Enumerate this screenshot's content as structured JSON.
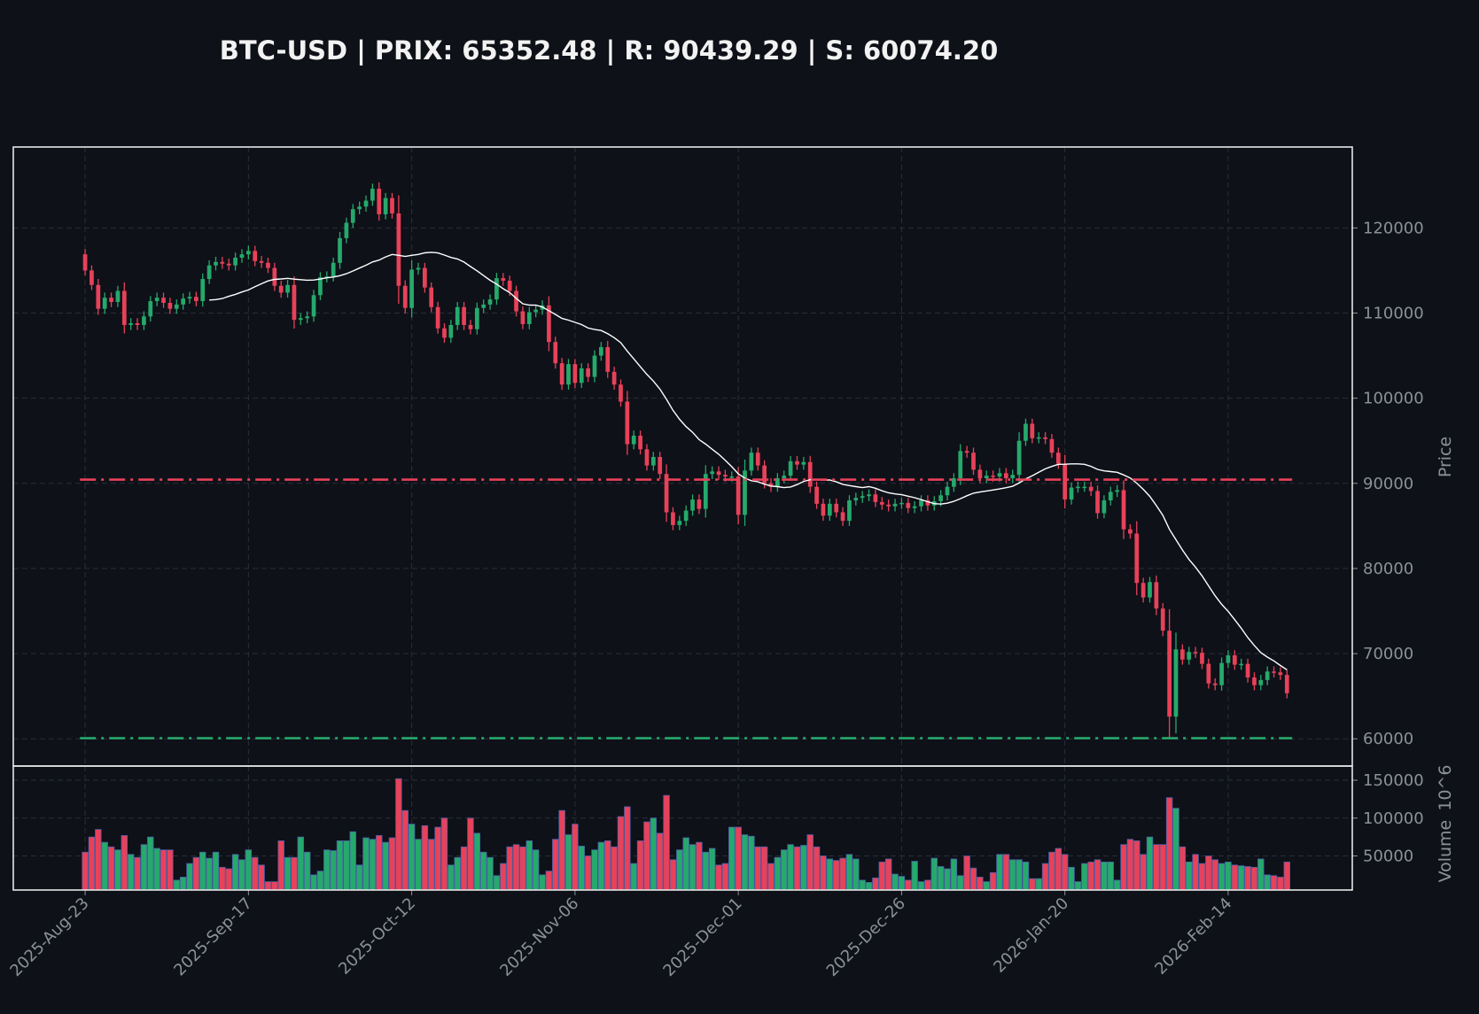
{
  "chart_data": {
    "type": "candlestick",
    "title": "BTC-USD | PRIX: 65352.48 | R: 90439.29 | S: 60074.20",
    "ylabel": "Price",
    "volume_label": "Volume",
    "volume_offset_label": "10^6",
    "start_date": "2025-08-23",
    "frequency": "daily",
    "xlim": [
      "2025-08-12",
      "2026-03-05"
    ],
    "price_ylim": [
      56800,
      129500
    ],
    "volume_ylim": [
      5000,
      168750
    ],
    "grid": true,
    "x_tick_labels": [
      "2025-Aug-23",
      "2025-Sep-17",
      "2025-Oct-12",
      "2025-Nov-06",
      "2025-Dec-01",
      "2025-Dec-26",
      "2026-Jan-20",
      "2026-Feb-14"
    ],
    "price_ticks": [
      "60000",
      "70000",
      "80000",
      "90000",
      "100000",
      "110000",
      "120000"
    ],
    "volume_ticks": [
      "50000",
      "100000",
      "150000"
    ],
    "resistance": {
      "value": 90439.29,
      "color": "#e8415a",
      "style": "dash-dot"
    },
    "support": {
      "value": 60074.2,
      "color": "#26a96c",
      "style": "dash-dot"
    },
    "overlay": {
      "type": "SMA",
      "period": 20,
      "color": "#ffffff"
    },
    "colors": {
      "up": "#26a96c",
      "down": "#e8415a",
      "background": "#0e1118",
      "text": "#8b919a"
    },
    "close": [
      115000,
      113300,
      110500,
      111800,
      111300,
      112600,
      108600,
      108800,
      108600,
      109600,
      111400,
      111800,
      111200,
      110500,
      111000,
      111700,
      111900,
      111400,
      114000,
      115600,
      116000,
      115800,
      115600,
      116500,
      116900,
      117300,
      116100,
      115900,
      115300,
      113200,
      112400,
      113300,
      109200,
      109400,
      109600,
      112100,
      114200,
      114300,
      115900,
      118800,
      120600,
      122200,
      122500,
      123200,
      124600,
      121600,
      123500,
      121700,
      113200,
      110600,
      115100,
      115300,
      113000,
      110700,
      108200,
      107100,
      108600,
      110700,
      108600,
      108100,
      110600,
      111000,
      111600,
      114100,
      113800,
      112600,
      110200,
      108700,
      110100,
      110400,
      110900,
      106600,
      104100,
      101600,
      104000,
      101800,
      103500,
      102500,
      105000,
      106000,
      103100,
      101600,
      99600,
      94600,
      95600,
      94000,
      92100,
      93100,
      91100,
      86600,
      85100,
      85600,
      86800,
      88100,
      87000,
      91100,
      91400,
      91000,
      90800,
      90800,
      86300,
      91500,
      93600,
      92100,
      90000,
      89600,
      90600,
      90900,
      92600,
      92200,
      92500,
      89600,
      87600,
      86200,
      87600,
      86600,
      85600,
      88000,
      88300,
      88500,
      88700,
      87800,
      87500,
      87300,
      87600,
      87700,
      87100,
      87300,
      88000,
      87400,
      87900,
      88600,
      89600,
      90600,
      93800,
      93600,
      91600,
      90600,
      90900,
      90800,
      91200,
      90600,
      91000,
      95000,
      97000,
      95300,
      95400,
      95200,
      93600,
      92300,
      88100,
      89500,
      89600,
      89600,
      89100,
      86500,
      88000,
      89000,
      89200,
      84600,
      84100,
      78300,
      76600,
      78400,
      75300,
      72700,
      62600,
      70500,
      69300,
      70200,
      70100,
      68800,
      66500,
      66300,
      68900,
      69800,
      68700,
      68800,
      67200,
      66300,
      66900,
      67900,
      67800,
      67500,
      65352.48
    ],
    "open_first": 116900,
    "volume": [
      55000,
      75000,
      85000,
      68000,
      62000,
      58000,
      77000,
      52000,
      48000,
      65000,
      75000,
      60000,
      58000,
      58000,
      18000,
      22000,
      40000,
      48000,
      55000,
      47000,
      55000,
      35000,
      33000,
      52000,
      45000,
      58000,
      48000,
      38000,
      16000,
      16000,
      70000,
      48000,
      48000,
      75000,
      55000,
      25000,
      30000,
      58000,
      57000,
      70000,
      70000,
      82000,
      38000,
      74000,
      72000,
      77000,
      68000,
      74000,
      152000,
      110000,
      92000,
      72000,
      90000,
      72000,
      88000,
      100000,
      38000,
      48000,
      62000,
      100000,
      80000,
      55000,
      48000,
      24000,
      40000,
      62000,
      65000,
      62000,
      70000,
      58000,
      25000,
      30000,
      72000,
      110000,
      78000,
      92000,
      63000,
      50000,
      58000,
      68000,
      70000,
      62000,
      102000,
      115000,
      40000,
      70000,
      95000,
      100000,
      80000,
      130000,
      45000,
      58000,
      74000,
      65000,
      68000,
      55000,
      60000,
      38000,
      40000,
      88000,
      88000,
      78000,
      76000,
      62000,
      62000,
      40000,
      48000,
      58000,
      65000,
      62000,
      64000,
      78000,
      62000,
      50000,
      46000,
      44000,
      47000,
      52000,
      46000,
      18000,
      15000,
      21000,
      42000,
      46000,
      26000,
      23000,
      18000,
      43000,
      16000,
      18000,
      47000,
      36000,
      33000,
      46000,
      24000,
      50000,
      34000,
      22000,
      16000,
      28000,
      52000,
      52000,
      45000,
      45000,
      42000,
      20000,
      20000,
      40000,
      55000,
      60000,
      52000,
      35000,
      16000,
      40000,
      42000,
      45000,
      42000,
      42000,
      18000,
      65000,
      72000,
      70000,
      52000,
      75000,
      65000,
      65000,
      127000,
      113000,
      62000,
      42000,
      52000,
      40000,
      50000,
      45000,
      40000,
      42000,
      38000,
      37000,
      36000,
      35000,
      46000,
      25000,
      24000,
      22000,
      42000
    ]
  }
}
